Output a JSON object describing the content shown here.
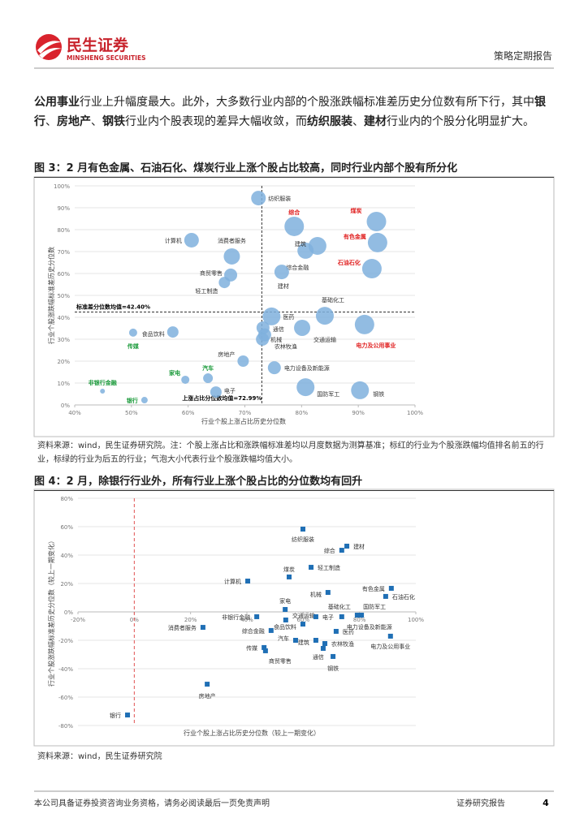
{
  "header": {
    "brand": "民生证券",
    "brand_en": "MINSHENG SECURITIES",
    "report_type": "策略定期报告"
  },
  "paragraph": [
    {
      "text": "公用事业",
      "bold": true
    },
    {
      "text": "行业上升幅度最大。此外，大多数行业内部的个股涨跌幅标准差历史分位数有所下行，其中",
      "bold": false
    },
    {
      "text": "银行",
      "bold": true
    },
    {
      "text": "、",
      "bold": false
    },
    {
      "text": "房地产",
      "bold": true
    },
    {
      "text": "、",
      "bold": false
    },
    {
      "text": "钢铁",
      "bold": true
    },
    {
      "text": "行业内个股表现的差异大幅收敛，而",
      "bold": false
    },
    {
      "text": "纺织服装",
      "bold": true
    },
    {
      "text": "、",
      "bold": false
    },
    {
      "text": "建材",
      "bold": true
    },
    {
      "text": "行业内的个股分化明显扩大。",
      "bold": false
    }
  ],
  "chart_data": [
    {
      "type": "bubble",
      "title": "图 3：2 月有色金属、石油石化、煤炭行业上涨个股占比较高，同时行业内部个股有所分化",
      "x_label": "行业个股上涨占比历史分位数",
      "y_label": "行业个股涨跌幅标准差历史分位数",
      "xlim": [
        40,
        100
      ],
      "ylim": [
        0,
        100
      ],
      "xticks": [
        {
          "value": 40,
          "label": "40%"
        },
        {
          "value": 50,
          "label": "50%"
        },
        {
          "value": 60,
          "label": "60%"
        },
        {
          "value": 70,
          "label": "70%"
        },
        {
          "value": 80,
          "label": "80%"
        },
        {
          "value": 90,
          "label": "90%"
        },
        {
          "value": 100,
          "label": "100%"
        }
      ],
      "yticks": [
        {
          "value": 0,
          "label": "0%"
        },
        {
          "value": 10,
          "label": "10%"
        },
        {
          "value": 20,
          "label": "20%"
        },
        {
          "value": 30,
          "label": "30%"
        },
        {
          "value": 40,
          "label": "40%"
        },
        {
          "value": 50,
          "label": "50%"
        },
        {
          "value": 60,
          "label": "60%"
        },
        {
          "value": 70,
          "label": "70%"
        },
        {
          "value": 80,
          "label": "80%"
        },
        {
          "value": 90,
          "label": "90%"
        },
        {
          "value": 100,
          "label": "100%"
        }
      ],
      "grid": true,
      "color": "#7fb0dd",
      "hline": {
        "value": 42.4,
        "label": "标准差分位数均值=42.40%"
      },
      "vline": {
        "value": 72.99,
        "label": "上涨占比分位数均值=72.99%"
      },
      "points": [
        {
          "name": "纺织服装",
          "x": 72.4,
          "y": 94.4,
          "size": 9,
          "label_color": "#333333"
        },
        {
          "name": "综合",
          "x": 78.7,
          "y": 81.5,
          "size": 12,
          "label_color": "#e02020"
        },
        {
          "name": "煤炭",
          "x": 93.2,
          "y": 83.7,
          "size": 12,
          "label_color": "#e02020"
        },
        {
          "name": "有色金属",
          "x": 93.4,
          "y": 74.1,
          "size": 12,
          "label_color": "#e02020"
        },
        {
          "name": "计算机",
          "x": 60.6,
          "y": 75.2,
          "size": 9,
          "label_color": "#333333"
        },
        {
          "name": "消费者服务",
          "x": 67.7,
          "y": 67.8,
          "size": 10,
          "label_color": "#333333"
        },
        {
          "name": "综合金融",
          "x": 80.7,
          "y": 70.4,
          "size": 10,
          "label_color": "#333333"
        },
        {
          "name": "建筑",
          "x": 82.8,
          "y": 72.6,
          "size": 11,
          "label_color": "#333333"
        },
        {
          "name": "建材",
          "x": 76.5,
          "y": 60.7,
          "size": 9,
          "label_color": "#333333"
        },
        {
          "name": "商贸零售",
          "x": 67.5,
          "y": 59.3,
          "size": 8,
          "label_color": "#333333"
        },
        {
          "name": "轻工制造",
          "x": 66.4,
          "y": 55.9,
          "size": 7,
          "label_color": "#333333"
        },
        {
          "name": "石油石化",
          "x": 92.4,
          "y": 62.2,
          "size": 12,
          "label_color": "#e02020"
        },
        {
          "name": "基础化工",
          "x": 84.1,
          "y": 40.7,
          "size": 11,
          "label_color": "#333333"
        },
        {
          "name": "医药",
          "x": 74.7,
          "y": 40.4,
          "size": 11,
          "label_color": "#333333"
        },
        {
          "name": "通信",
          "x": 73.2,
          "y": 35.2,
          "size": 8,
          "label_color": "#333333"
        },
        {
          "name": "交通运输",
          "x": 80.1,
          "y": 35.2,
          "size": 10,
          "label_color": "#333333"
        },
        {
          "name": "机械",
          "x": 73.1,
          "y": 30,
          "size": 8,
          "label_color": "#333333"
        },
        {
          "name": "电力及公用事业",
          "x": 91.1,
          "y": 36.7,
          "size": 12,
          "label_color": "#e02020"
        },
        {
          "name": "农林牧渔",
          "x": 73.5,
          "y": 32,
          "size": 8,
          "label_color": "#333333"
        },
        {
          "name": "食品饮料",
          "x": 57.3,
          "y": 33.3,
          "size": 7,
          "label_color": "#333333"
        },
        {
          "name": "传媒",
          "x": 50.3,
          "y": 33,
          "size": 5,
          "label_color": "#1a9a3a"
        },
        {
          "name": "房地产",
          "x": 69.7,
          "y": 20,
          "size": 7,
          "label_color": "#333333"
        },
        {
          "name": "电力设备及新能源",
          "x": 75.2,
          "y": 17,
          "size": 8,
          "label_color": "#333333"
        },
        {
          "name": "家电",
          "x": 59.5,
          "y": 11.5,
          "size": 5,
          "label_color": "#1a9a3a"
        },
        {
          "name": "汽车",
          "x": 63.5,
          "y": 12.2,
          "size": 6,
          "label_color": "#1a9a3a"
        },
        {
          "name": "电子",
          "x": 64.9,
          "y": 5.9,
          "size": 7,
          "label_color": "#333333"
        },
        {
          "name": "国防军工",
          "x": 80.7,
          "y": 8.1,
          "size": 11,
          "label_color": "#333333"
        },
        {
          "name": "钢铁",
          "x": 90.3,
          "y": 6.7,
          "size": 11,
          "label_color": "#333333"
        },
        {
          "name": "非银行金融",
          "x": 44.9,
          "y": 6.3,
          "size": 3,
          "label_color": "#1a9a3a"
        },
        {
          "name": "银行",
          "x": 52.3,
          "y": 2.2,
          "size": 4,
          "label_color": "#1a9a3a"
        }
      ],
      "source": "资料来源：wind，民生证券研究院。注：个股上涨占比和涨跌幅标准差均以月度数据为测算基准；标红的行业为个股涨跌幅均值排名前五的行业，标绿的行业为后五的行业；气泡大小代表行业个股涨跌幅均值大小。"
    },
    {
      "type": "scatter",
      "title": "图 4：2 月，除银行行业外，所有行业上涨个股占比的分位数均有回升",
      "x_label": "行业个股上涨占比历史分位数（较上一期变化）",
      "y_label": "行业个股涨跌幅标准差历史分位数（较上一期变化）",
      "xlim": [
        -20,
        100
      ],
      "ylim": [
        -80,
        80
      ],
      "xticks": [
        {
          "value": -20,
          "label": "-20%"
        },
        {
          "value": 0,
          "label": "0%"
        },
        {
          "value": 20,
          "label": "20%"
        },
        {
          "value": 40,
          "label": "40%"
        },
        {
          "value": 60,
          "label": "60%"
        },
        {
          "value": 80,
          "label": "80%"
        },
        {
          "value": 100,
          "label": "100%"
        }
      ],
      "yticks": [
        {
          "value": -80,
          "label": "-80%"
        },
        {
          "value": -60,
          "label": "-60%"
        },
        {
          "value": -40,
          "label": "-40%"
        },
        {
          "value": -20,
          "label": "-20%"
        },
        {
          "value": 0,
          "label": "0%"
        },
        {
          "value": 20,
          "label": "20%"
        },
        {
          "value": 40,
          "label": "40%"
        },
        {
          "value": 60,
          "label": "60%"
        },
        {
          "value": 80,
          "label": "80%"
        }
      ],
      "grid": true,
      "color": "#1f6fb5",
      "vline": {
        "value": 0,
        "color": "#e05050"
      },
      "points": [
        {
          "name": "纺织服装",
          "x": 59.9,
          "y": 58.3
        },
        {
          "name": "建材",
          "x": 75.5,
          "y": 46.3
        },
        {
          "name": "综合",
          "x": 73.7,
          "y": 43.4
        },
        {
          "name": "轻工制造",
          "x": 62.8,
          "y": 31.4
        },
        {
          "name": "煤炭",
          "x": 55,
          "y": 24.6
        },
        {
          "name": "计算机",
          "x": 40.3,
          "y": 21.7
        },
        {
          "name": "机械",
          "x": 68.8,
          "y": 13.7
        },
        {
          "name": "有色金属",
          "x": 91.3,
          "y": 16.6
        },
        {
          "name": "石油石化",
          "x": 89.3,
          "y": 10.9
        },
        {
          "name": "基础化工",
          "x": 79.2,
          "y": -2.3
        },
        {
          "name": "国防军工",
          "x": 80.7,
          "y": -2.3
        },
        {
          "name": "家电",
          "x": 53.6,
          "y": 1.7
        },
        {
          "name": "非银行金融",
          "x": 43.5,
          "y": -3.4
        },
        {
          "name": "交通运输",
          "x": 53.8,
          "y": -5.7
        },
        {
          "name": "电子",
          "x": 64.5,
          "y": -3.4
        },
        {
          "name": "食品饮料",
          "x": 59.9,
          "y": -8.6
        },
        {
          "name": "电力设备及新能源",
          "x": 73.7,
          "y": -3.4
        },
        {
          "name": "消费者服务",
          "x": 24.4,
          "y": -10.9
        },
        {
          "name": "综合金融",
          "x": 48.6,
          "y": -13.1
        },
        {
          "name": "医药",
          "x": 71.7,
          "y": -13.7
        },
        {
          "name": "汽车",
          "x": 57.3,
          "y": -20
        },
        {
          "name": "建筑",
          "x": 64.5,
          "y": -20
        },
        {
          "name": "农林牧渔",
          "x": 67.7,
          "y": -22.3
        },
        {
          "name": "电力及公用事业",
          "x": 91,
          "y": -17.1
        },
        {
          "name": "传媒",
          "x": 46.1,
          "y": -25.1
        },
        {
          "name": "商贸零售",
          "x": 46.6,
          "y": -27.4
        },
        {
          "name": "通信",
          "x": 67.1,
          "y": -25.7
        },
        {
          "name": "钢铁",
          "x": 70.6,
          "y": -31.4
        },
        {
          "name": "房地产",
          "x": 25.9,
          "y": -50.9
        },
        {
          "name": "银行",
          "x": -2.4,
          "y": -72.6
        }
      ],
      "source": "资料来源：wind，民生证券研究院"
    }
  ],
  "footer": {
    "disclaimer": "本公司具备证券投资咨询业务资格，请务必阅读最后一页免责声明",
    "label": "证券研究报告",
    "page": "4"
  }
}
